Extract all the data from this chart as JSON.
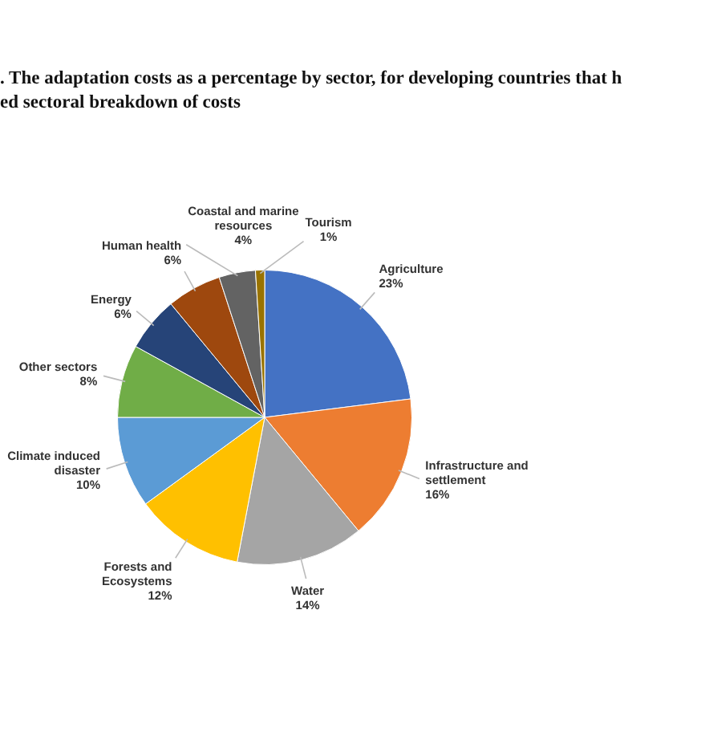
{
  "chart_data": {
    "type": "pie",
    "title": ". The adaptation costs as a percentage by sector, for developing countries that h\ned sectoral breakdown of costs",
    "categories": [
      "Agriculture",
      "Infrastructure and settlement",
      "Water",
      "Forests and Ecosystems",
      "Climate induced disaster",
      "Other sectors",
      "Energy",
      "Human health",
      "Coastal and marine resources",
      "Tourism"
    ],
    "values": [
      23,
      16,
      14,
      12,
      10,
      8,
      6,
      6,
      4,
      1
    ],
    "value_labels": [
      "23%",
      "16%",
      "14%",
      "12%",
      "10%",
      "8%",
      "6%",
      "6%",
      "4%",
      "1%"
    ],
    "colors": [
      "#4472c4",
      "#ed7d31",
      "#a5a5a5",
      "#ffc000",
      "#5b9bd5",
      "#70ad47",
      "#264478",
      "#9e480e",
      "#636363",
      "#997300"
    ],
    "legend": false
  }
}
